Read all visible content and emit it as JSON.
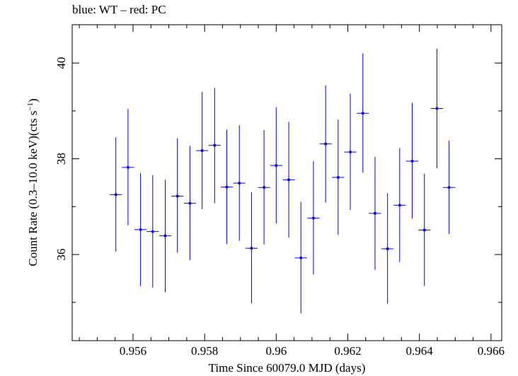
{
  "chart_data": {
    "type": "scatter",
    "title": "blue: WT – red: PC",
    "xlabel": "Time Since 60079.0 MJD (days)",
    "ylabel": "Count Rate (0.3–10.0 keV)(cts s",
    "ylabel_sup": "−1",
    "ylabel_tail": ")",
    "xlim": [
      0.9543,
      0.9663
    ],
    "ylim": [
      34.2,
      40.8
    ],
    "x_ticks": [
      0.956,
      0.958,
      0.96,
      0.962,
      0.964,
      0.966
    ],
    "x_tick_labels": [
      "0.956",
      "0.958",
      "0.96",
      "0.962",
      "0.964",
      "0.966"
    ],
    "y_ticks": [
      36,
      38,
      40
    ],
    "y_tick_labels": [
      "36",
      "38",
      "40"
    ],
    "grid": false,
    "series": [
      {
        "color": "#0000ee",
        "points": [
          {
            "x": 0.95552,
            "xerr": 0.00017,
            "y": 37.25,
            "ylo": 36.06,
            "yhi": 38.45
          },
          {
            "x": 0.95586,
            "xerr": 0.00017,
            "y": 37.82,
            "ylo": 36.61,
            "yhi": 39.04
          },
          {
            "x": 0.95621,
            "xerr": 0.00017,
            "y": 36.52,
            "ylo": 35.34,
            "yhi": 37.7
          },
          {
            "x": 0.95655,
            "xerr": 0.00017,
            "y": 36.48,
            "ylo": 35.31,
            "yhi": 37.66
          },
          {
            "x": 0.9569,
            "xerr": 0.00017,
            "y": 36.39,
            "ylo": 35.21,
            "yhi": 37.56
          },
          {
            "x": 0.95724,
            "xerr": 0.00017,
            "y": 37.22,
            "ylo": 36.04,
            "yhi": 38.43
          },
          {
            "x": 0.95759,
            "xerr": 0.00017,
            "y": 37.07,
            "ylo": 35.88,
            "yhi": 38.27
          },
          {
            "x": 0.95793,
            "xerr": 0.00017,
            "y": 38.17,
            "ylo": 36.95,
            "yhi": 39.4
          },
          {
            "x": 0.95828,
            "xerr": 0.00017,
            "y": 38.28,
            "ylo": 37.07,
            "yhi": 39.48
          },
          {
            "x": 0.95862,
            "xerr": 0.00017,
            "y": 37.41,
            "ylo": 36.22,
            "yhi": 38.61
          },
          {
            "x": 0.95897,
            "xerr": 0.00017,
            "y": 37.49,
            "ylo": 36.29,
            "yhi": 38.7
          },
          {
            "x": 0.95931,
            "xerr": 0.00017,
            "y": 36.13,
            "ylo": 34.98,
            "yhi": 37.3
          },
          {
            "x": 0.95966,
            "xerr": 0.00017,
            "y": 37.4,
            "ylo": 36.21,
            "yhi": 38.6
          },
          {
            "x": 0.96,
            "xerr": 0.00017,
            "y": 37.86,
            "ylo": 36.65,
            "yhi": 39.08
          },
          {
            "x": 0.96035,
            "xerr": 0.00017,
            "y": 37.56,
            "ylo": 36.35,
            "yhi": 38.77
          },
          {
            "x": 0.96069,
            "xerr": 0.00017,
            "y": 35.93,
            "ylo": 34.77,
            "yhi": 37.1
          },
          {
            "x": 0.96104,
            "xerr": 0.00017,
            "y": 36.76,
            "ylo": 35.58,
            "yhi": 37.95
          },
          {
            "x": 0.96138,
            "xerr": 0.00017,
            "y": 38.31,
            "ylo": 37.09,
            "yhi": 39.53
          },
          {
            "x": 0.96173,
            "xerr": 0.00017,
            "y": 37.61,
            "ylo": 36.41,
            "yhi": 38.82
          },
          {
            "x": 0.96207,
            "xerr": 0.00017,
            "y": 38.14,
            "ylo": 36.93,
            "yhi": 39.36
          },
          {
            "x": 0.96242,
            "xerr": 0.00017,
            "y": 38.95,
            "ylo": 37.71,
            "yhi": 40.2
          },
          {
            "x": 0.96276,
            "xerr": 0.00017,
            "y": 36.86,
            "ylo": 35.68,
            "yhi": 38.04
          },
          {
            "x": 0.96311,
            "xerr": 0.00017,
            "y": 36.12,
            "ylo": 34.97,
            "yhi": 37.28
          },
          {
            "x": 0.96345,
            "xerr": 0.00017,
            "y": 37.03,
            "ylo": 35.84,
            "yhi": 38.22
          },
          {
            "x": 0.9638,
            "xerr": 0.00017,
            "y": 37.95,
            "ylo": 36.75,
            "yhi": 39.17
          },
          {
            "x": 0.96414,
            "xerr": 0.00017,
            "y": 36.51,
            "ylo": 35.34,
            "yhi": 37.69
          },
          {
            "x": 0.96449,
            "xerr": 0.00017,
            "y": 39.05,
            "ylo": 37.8,
            "yhi": 40.3
          },
          {
            "x": 0.96483,
            "xerr": 0.00017,
            "y": 37.4,
            "ylo": 36.43,
            "yhi": 38.38
          }
        ]
      }
    ]
  }
}
